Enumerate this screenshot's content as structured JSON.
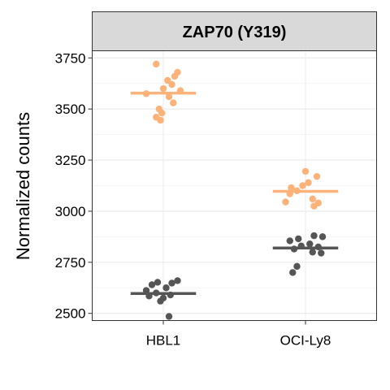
{
  "chart_data": {
    "type": "scatter",
    "title": "ZAP70 (Y319)",
    "xlabel": "",
    "ylabel": "Normalized counts",
    "categories": [
      "HBL1",
      "OCI-Ly8"
    ],
    "ylim": [
      2465,
      3785
    ],
    "yticks": [
      2500,
      2750,
      3000,
      3250,
      3500,
      3750
    ],
    "grid": true,
    "legend": "none",
    "series": [
      {
        "color": "#FDB27A",
        "medians": [
          3578,
          3097
        ],
        "points": [
          {
            "category": "HBL1",
            "offset": -0.05,
            "value": 3720
          },
          {
            "category": "HBL1",
            "offset": 0.1,
            "value": 3680
          },
          {
            "category": "HBL1",
            "offset": 0.08,
            "value": 3660
          },
          {
            "category": "HBL1",
            "offset": 0.03,
            "value": 3640
          },
          {
            "category": "HBL1",
            "offset": 0.06,
            "value": 3620
          },
          {
            "category": "HBL1",
            "offset": 0.0,
            "value": 3600
          },
          {
            "category": "HBL1",
            "offset": 0.12,
            "value": 3590
          },
          {
            "category": "HBL1",
            "offset": -0.12,
            "value": 3575
          },
          {
            "category": "HBL1",
            "offset": 0.04,
            "value": 3560
          },
          {
            "category": "HBL1",
            "offset": 0.07,
            "value": 3530
          },
          {
            "category": "HBL1",
            "offset": -0.03,
            "value": 3500
          },
          {
            "category": "HBL1",
            "offset": -0.01,
            "value": 3480
          },
          {
            "category": "HBL1",
            "offset": -0.05,
            "value": 3460
          },
          {
            "category": "HBL1",
            "offset": -0.02,
            "value": 3445
          },
          {
            "category": "OCI-Ly8",
            "offset": 0.0,
            "value": 3195
          },
          {
            "category": "OCI-Ly8",
            "offset": 0.08,
            "value": 3170
          },
          {
            "category": "OCI-Ly8",
            "offset": 0.02,
            "value": 3140
          },
          {
            "category": "OCI-Ly8",
            "offset": -0.02,
            "value": 3125
          },
          {
            "category": "OCI-Ly8",
            "offset": -0.1,
            "value": 3115
          },
          {
            "category": "OCI-Ly8",
            "offset": -0.06,
            "value": 3100
          },
          {
            "category": "OCI-Ly8",
            "offset": -0.11,
            "value": 3085
          },
          {
            "category": "OCI-Ly8",
            "offset": 0.05,
            "value": 3060
          },
          {
            "category": "OCI-Ly8",
            "offset": -0.14,
            "value": 3045
          },
          {
            "category": "OCI-Ly8",
            "offset": 0.09,
            "value": 3040
          },
          {
            "category": "OCI-Ly8",
            "offset": 0.06,
            "value": 3025
          }
        ]
      },
      {
        "color": "#555555",
        "medians": [
          2597,
          2820
        ],
        "points": [
          {
            "category": "HBL1",
            "offset": 0.1,
            "value": 2660
          },
          {
            "category": "HBL1",
            "offset": -0.04,
            "value": 2652
          },
          {
            "category": "HBL1",
            "offset": 0.06,
            "value": 2648
          },
          {
            "category": "HBL1",
            "offset": -0.08,
            "value": 2640
          },
          {
            "category": "HBL1",
            "offset": 0.02,
            "value": 2625
          },
          {
            "category": "HBL1",
            "offset": -0.12,
            "value": 2612
          },
          {
            "category": "HBL1",
            "offset": -0.05,
            "value": 2600
          },
          {
            "category": "HBL1",
            "offset": 0.05,
            "value": 2590
          },
          {
            "category": "HBL1",
            "offset": -0.1,
            "value": 2585
          },
          {
            "category": "HBL1",
            "offset": 0.0,
            "value": 2575
          },
          {
            "category": "HBL1",
            "offset": -0.02,
            "value": 2560
          },
          {
            "category": "HBL1",
            "offset": 0.04,
            "value": 2485
          },
          {
            "category": "OCI-Ly8",
            "offset": 0.06,
            "value": 2880
          },
          {
            "category": "OCI-Ly8",
            "offset": 0.12,
            "value": 2875
          },
          {
            "category": "OCI-Ly8",
            "offset": -0.05,
            "value": 2865
          },
          {
            "category": "OCI-Ly8",
            "offset": -0.11,
            "value": 2855
          },
          {
            "category": "OCI-Ly8",
            "offset": 0.03,
            "value": 2840
          },
          {
            "category": "OCI-Ly8",
            "offset": -0.03,
            "value": 2830
          },
          {
            "category": "OCI-Ly8",
            "offset": 0.09,
            "value": 2825
          },
          {
            "category": "OCI-Ly8",
            "offset": -0.08,
            "value": 2815
          },
          {
            "category": "OCI-Ly8",
            "offset": 0.05,
            "value": 2800
          },
          {
            "category": "OCI-Ly8",
            "offset": 0.11,
            "value": 2795
          },
          {
            "category": "OCI-Ly8",
            "offset": -0.06,
            "value": 2730
          },
          {
            "category": "OCI-Ly8",
            "offset": -0.09,
            "value": 2700
          }
        ]
      }
    ]
  }
}
